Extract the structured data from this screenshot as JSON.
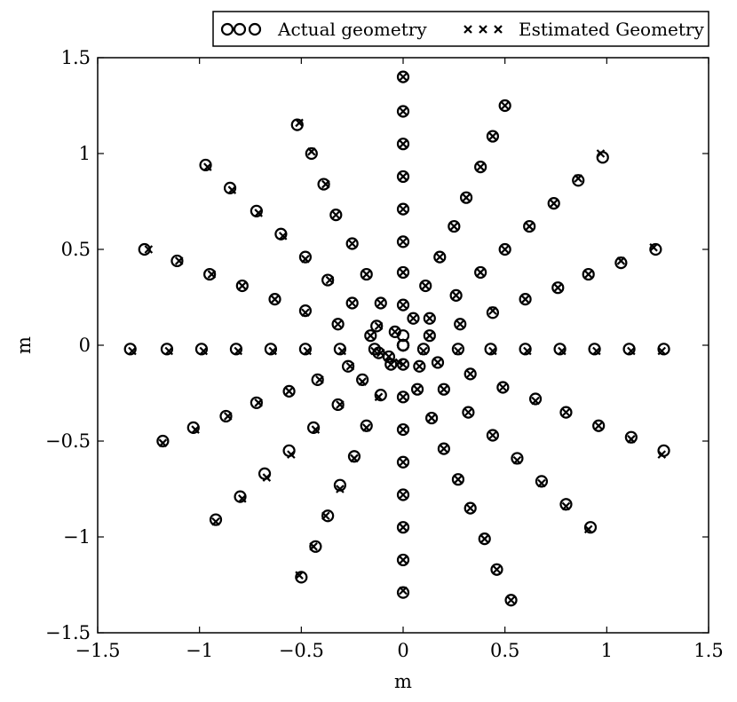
{
  "chart_data": {
    "type": "scatter",
    "title": "",
    "xlabel": "m",
    "ylabel": "m",
    "xlim": [
      -1.5,
      1.5
    ],
    "ylim": [
      -1.5,
      1.5
    ],
    "xticks": [
      "−1.5",
      "−1",
      "−0.5",
      "0",
      "0.5",
      "1",
      "1.5"
    ],
    "yticks": [
      "−1.5",
      "−1",
      "−0.5",
      "0",
      "0.5",
      "1",
      "1.5"
    ],
    "grid": false,
    "legend_position": "top-right",
    "series": [
      {
        "name": "Actual geometry",
        "marker": "circle",
        "x": [
          0,
          0,
          0,
          0,
          0,
          0,
          0,
          0,
          0,
          0,
          0,
          0,
          0,
          0,
          0,
          0,
          0,
          0,
          0,
          0,
          0,
          0,
          0,
          -1.34,
          -1.16,
          -0.99,
          -0.82,
          -0.65,
          -0.48,
          -0.31,
          -0.14,
          0.1,
          0.27,
          0.43,
          0.6,
          0.77,
          0.94,
          1.11,
          1.28,
          0.5,
          0.44,
          0.38,
          0.31,
          0.25,
          0.18,
          0.11,
          0.05,
          0.98,
          0.86,
          0.74,
          0.62,
          0.5,
          0.38,
          0.26,
          0.13,
          1.24,
          1.07,
          0.91,
          0.76,
          0.6,
          0.44,
          0.28,
          0.13,
          1.28,
          1.12,
          0.96,
          0.8,
          0.65,
          0.49,
          0.33,
          0.17,
          0.92,
          0.8,
          0.68,
          0.56,
          0.44,
          0.32,
          0.2,
          0.08,
          0.53,
          0.46,
          0.4,
          0.33,
          0.27,
          0.2,
          0.14,
          0.07,
          -0.5,
          -0.43,
          -0.37,
          -0.31,
          -0.24,
          -0.18,
          -0.11,
          -0.06,
          -0.97,
          -0.85,
          -0.72,
          -0.6,
          -0.48,
          -0.37,
          -0.25,
          -0.13,
          -1.27,
          -1.11,
          -0.95,
          -0.79,
          -0.63,
          -0.48,
          -0.32,
          -0.16,
          -1.18,
          -1.03,
          -0.87,
          -0.72,
          -0.56,
          -0.42,
          -0.27,
          -0.12,
          -0.92,
          -0.8,
          -0.68,
          -0.56,
          -0.44,
          -0.32,
          -0.2,
          -0.07,
          -0.52,
          -0.45,
          -0.39,
          -0.33,
          -0.25,
          -0.18,
          -0.11,
          -0.04
        ],
        "y": [
          1.4,
          1.22,
          1.05,
          0.88,
          0.71,
          0.54,
          0.38,
          0.21,
          0.05,
          -0.1,
          -0.27,
          -0.44,
          -0.61,
          -0.78,
          -0.95,
          -1.12,
          -1.29,
          0,
          0,
          0,
          0,
          0,
          0,
          -0.02,
          -0.02,
          -0.02,
          -0.02,
          -0.02,
          -0.02,
          -0.02,
          -0.02,
          -0.02,
          -0.02,
          -0.02,
          -0.02,
          -0.02,
          -0.02,
          -0.02,
          -0.02,
          1.25,
          1.09,
          0.93,
          0.77,
          0.62,
          0.46,
          0.31,
          0.14,
          0.98,
          0.86,
          0.74,
          0.62,
          0.5,
          0.38,
          0.26,
          0.14,
          0.5,
          0.43,
          0.37,
          0.3,
          0.24,
          0.17,
          0.11,
          0.05,
          -0.55,
          -0.48,
          -0.42,
          -0.35,
          -0.28,
          -0.22,
          -0.15,
          -0.09,
          -0.95,
          -0.83,
          -0.71,
          -0.59,
          -0.47,
          -0.35,
          -0.23,
          -0.11,
          -1.33,
          -1.17,
          -1.01,
          -0.85,
          -0.7,
          -0.54,
          -0.38,
          -0.23,
          -1.21,
          -1.05,
          -0.89,
          -0.73,
          -0.58,
          -0.42,
          -0.26,
          -0.1,
          0.94,
          0.82,
          0.7,
          0.58,
          0.46,
          0.34,
          0.22,
          0.1,
          0.5,
          0.44,
          0.37,
          0.31,
          0.24,
          0.18,
          0.11,
          0.05,
          -0.5,
          -0.43,
          -0.37,
          -0.3,
          -0.24,
          -0.18,
          -0.11,
          -0.04,
          -0.91,
          -0.79,
          -0.67,
          -0.55,
          -0.43,
          -0.31,
          -0.18,
          -0.06,
          1.15,
          1.0,
          0.84,
          0.68,
          0.53,
          0.37,
          0.22,
          0.07
        ]
      },
      {
        "name": "Estimated Geometry",
        "marker": "x",
        "x": [
          0,
          0,
          0,
          0,
          0,
          0,
          0,
          0,
          0,
          0,
          0,
          0,
          0,
          0,
          0,
          0,
          -0.02,
          -1.33,
          -1.15,
          -0.98,
          -0.81,
          -0.64,
          -0.47,
          -0.3,
          -0.14,
          0.1,
          0.27,
          0.44,
          0.61,
          0.78,
          0.95,
          1.12,
          1.27,
          0.5,
          0.44,
          0.38,
          0.31,
          0.25,
          0.18,
          0.11,
          0.05,
          0.97,
          0.86,
          0.74,
          0.62,
          0.5,
          0.38,
          0.26,
          0.13,
          1.23,
          1.07,
          0.91,
          0.76,
          0.6,
          0.44,
          0.28,
          0.13,
          1.27,
          1.12,
          0.96,
          0.8,
          0.65,
          0.49,
          0.33,
          0.17,
          0.91,
          0.8,
          0.68,
          0.56,
          0.44,
          0.32,
          0.2,
          0.08,
          0.53,
          0.46,
          0.4,
          0.33,
          0.27,
          0.2,
          0.14,
          0.07,
          -0.51,
          -0.44,
          -0.38,
          -0.31,
          -0.24,
          -0.18,
          -0.12,
          -0.06,
          -0.96,
          -0.84,
          -0.71,
          -0.59,
          -0.48,
          -0.36,
          -0.25,
          -0.12,
          -1.25,
          -1.1,
          -0.94,
          -0.79,
          -0.63,
          -0.48,
          -0.32,
          -0.16,
          -1.18,
          -1.02,
          -0.86,
          -0.71,
          -0.56,
          -0.41,
          -0.26,
          -0.11,
          -0.92,
          -0.79,
          -0.67,
          -0.55,
          -0.43,
          -0.31,
          -0.2,
          -0.07,
          -0.51,
          -0.45,
          -0.38,
          -0.33,
          -0.25,
          -0.18,
          -0.11,
          -0.04
        ],
        "y": [
          1.4,
          1.22,
          1.05,
          0.88,
          0.71,
          0.54,
          0.38,
          0.21,
          -0.1,
          -0.27,
          -0.44,
          -0.61,
          -0.78,
          -0.95,
          -1.12,
          -1.28,
          -0.09,
          -0.03,
          -0.03,
          -0.03,
          -0.03,
          -0.03,
          -0.03,
          -0.03,
          -0.03,
          -0.03,
          -0.03,
          -0.03,
          -0.03,
          -0.03,
          -0.03,
          -0.03,
          -0.03,
          1.25,
          1.09,
          0.93,
          0.77,
          0.62,
          0.46,
          0.31,
          0.14,
          1.0,
          0.87,
          0.74,
          0.62,
          0.5,
          0.38,
          0.26,
          0.14,
          0.51,
          0.44,
          0.37,
          0.3,
          0.24,
          0.18,
          0.11,
          0.05,
          -0.57,
          -0.49,
          -0.42,
          -0.35,
          -0.29,
          -0.22,
          -0.15,
          -0.09,
          -0.96,
          -0.84,
          -0.72,
          -0.6,
          -0.47,
          -0.35,
          -0.23,
          -0.11,
          -1.33,
          -1.17,
          -1.01,
          -0.85,
          -0.7,
          -0.54,
          -0.38,
          -0.23,
          -1.2,
          -1.05,
          -0.89,
          -0.75,
          -0.59,
          -0.43,
          -0.27,
          -0.1,
          0.93,
          0.81,
          0.69,
          0.57,
          0.45,
          0.34,
          0.22,
          0.1,
          0.5,
          0.44,
          0.37,
          0.31,
          0.24,
          0.17,
          0.11,
          0.05,
          -0.51,
          -0.44,
          -0.37,
          -0.3,
          -0.24,
          -0.18,
          -0.11,
          -0.04,
          -0.92,
          -0.8,
          -0.69,
          -0.57,
          -0.44,
          -0.31,
          -0.19,
          -0.06,
          1.16,
          1.01,
          0.84,
          0.68,
          0.53,
          0.37,
          0.22,
          0.07
        ]
      }
    ]
  }
}
